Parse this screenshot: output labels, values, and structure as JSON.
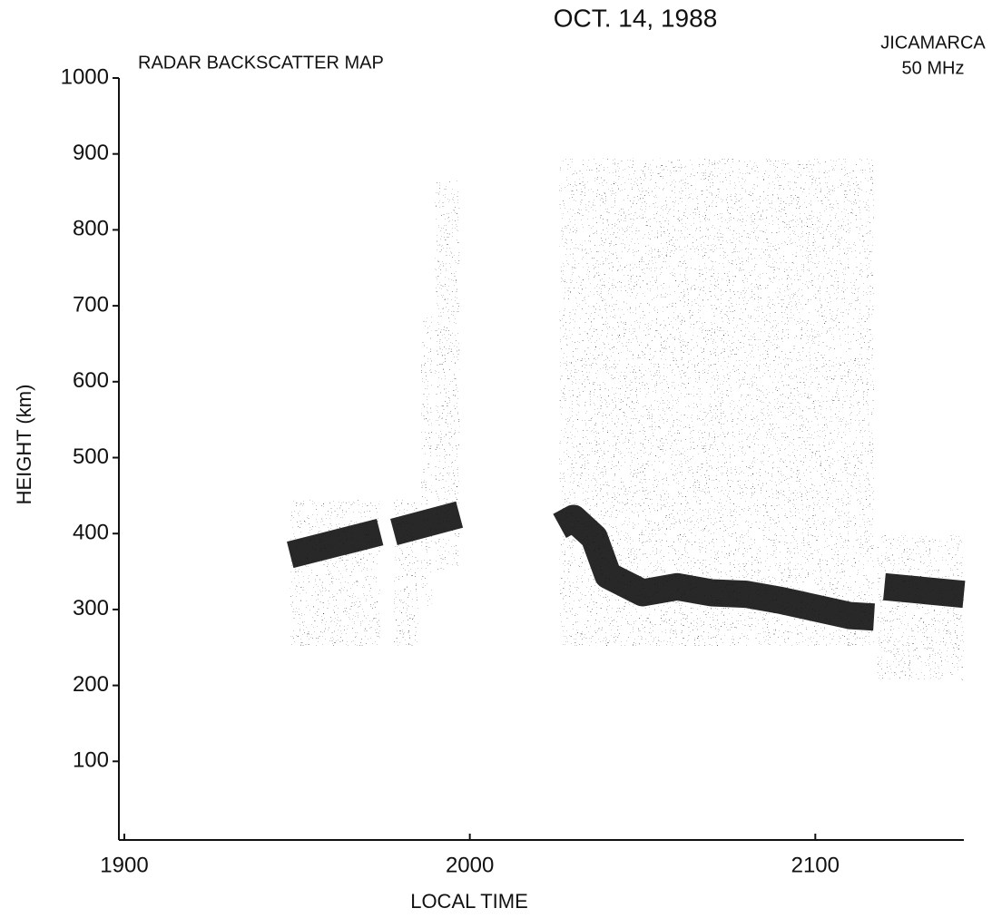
{
  "chart_data": {
    "type": "rti",
    "title": "OCT. 14, 1988",
    "subtitle": "RADAR BACKSCATTER MAP",
    "annotations": [
      "JICAMARCA",
      "50 MHz"
    ],
    "xlabel": "LOCAL TIME",
    "ylabel": "HEIGHT (km)",
    "xlim": [
      1900,
      2143
    ],
    "ylim": [
      0,
      1000
    ],
    "xticks": [
      1900,
      2000,
      2100
    ],
    "yticks": [
      100,
      200,
      300,
      400,
      500,
      600,
      700,
      800,
      900,
      1000
    ],
    "panels": [
      {
        "x": [
          1948,
          1974
        ],
        "y": [
          252,
          444
        ]
      },
      {
        "x": [
          1978,
          1985
        ],
        "y": [
          252,
          444
        ]
      },
      {
        "x": [
          1986,
          1989
        ],
        "y": [
          302,
          687
        ]
      },
      {
        "x": [
          1990,
          1997
        ],
        "y": [
          352,
          866
        ]
      },
      {
        "x": [
          2026,
          2117
        ],
        "y": [
          252,
          894
        ]
      },
      {
        "x": [
          2118,
          2143
        ],
        "y": [
          207,
          398
        ]
      }
    ],
    "series": [
      {
        "color": "#111111",
        "x": [
          1948,
          1974,
          1976,
          1978,
          1997,
          2000,
          2026,
          2030,
          2036,
          2040,
          2050,
          2060,
          2070,
          2080,
          2090,
          2100,
          2110,
          2117,
          2118,
          2120,
          2143
        ],
        "values": [
          372,
          402,
          null,
          402,
          425,
          null,
          410,
          420,
          395,
          345,
          322,
          330,
          322,
          320,
          312,
          302,
          292,
          290,
          null,
          330,
          320
        ]
      }
    ]
  }
}
